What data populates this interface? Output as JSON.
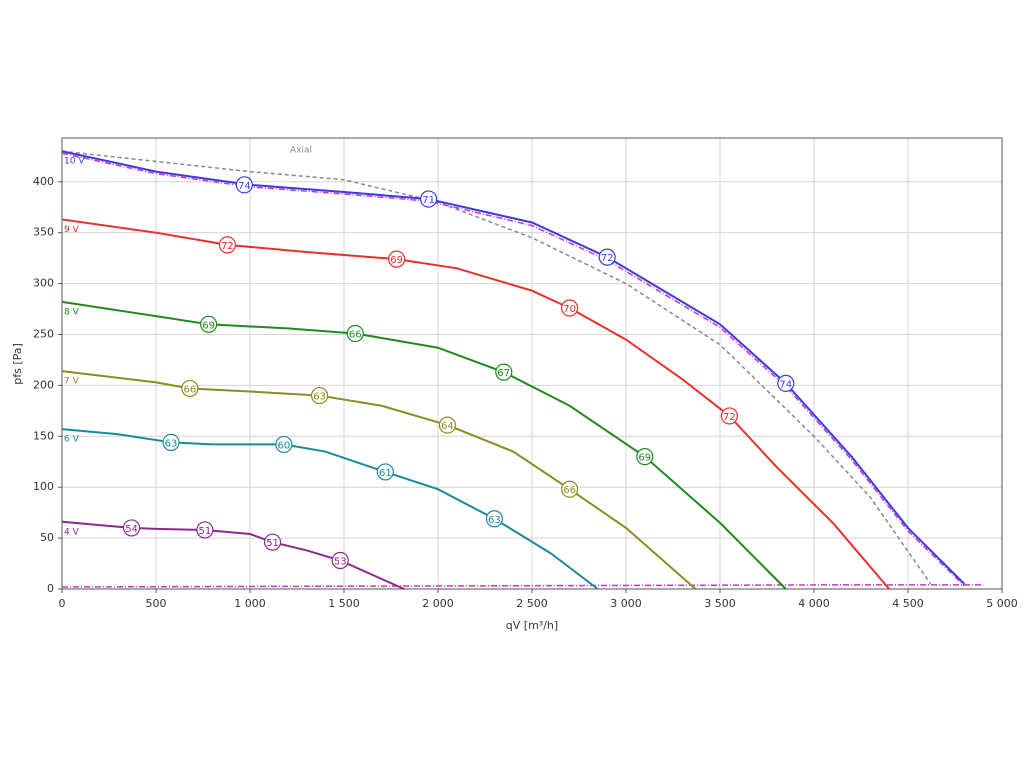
{
  "chart_data": {
    "type": "line",
    "x_label": "qV [m³/h]",
    "y_label": "pfs [Pa]",
    "xlim": [
      0,
      5000
    ],
    "ylim": [
      0,
      443
    ],
    "grid": true,
    "xticks": [
      0,
      500,
      {
        "value": 1000,
        "label": "1 000"
      },
      {
        "value": 1500,
        "label": "1 500"
      },
      {
        "value": 2000,
        "label": "2 000"
      },
      {
        "value": 2500,
        "label": "2 500"
      },
      {
        "value": 3000,
        "label": "3 000"
      },
      {
        "value": 3500,
        "label": "3 500"
      },
      {
        "value": 4000,
        "label": "4 000"
      },
      {
        "value": 4500,
        "label": "4 500"
      },
      {
        "value": 5000,
        "label": "5 000"
      }
    ],
    "yticks": [
      0,
      50,
      100,
      150,
      200,
      250,
      300,
      350,
      400
    ],
    "series": [
      {
        "name": "Axial",
        "color": "#888888",
        "dash": "4,3",
        "x": [
          0,
          1000,
          1500,
          2000,
          2500,
          3000,
          3500,
          4000,
          4300,
          4620
        ],
        "values": [
          430,
          410,
          402,
          380,
          345,
          300,
          240,
          150,
          90,
          5
        ]
      },
      {
        "color": "#cc33cc",
        "dash": "6,2,1,2",
        "x": [
          0,
          500,
          1000,
          1500,
          1950,
          2500,
          2900,
          3500,
          3850,
          4200,
          4500,
          4800
        ],
        "values": [
          428,
          408,
          395,
          388,
          381,
          357,
          323,
          257,
          199,
          127,
          57,
          3
        ]
      },
      {
        "color": "#cc33cc",
        "dash": "6,2,1,2",
        "x": [
          0,
          2000,
          4000,
          4900
        ],
        "values": [
          2,
          3,
          4,
          4
        ]
      },
      {
        "name": "10 V",
        "color": "#3b3bdc",
        "x": [
          0,
          500,
          1000,
          1500,
          1950,
          2500,
          2900,
          3500,
          3850,
          4200,
          4500,
          4800
        ],
        "values": [
          430,
          410,
          397,
          390,
          383,
          360,
          326,
          260,
          202,
          130,
          60,
          5
        ],
        "markers": [
          {
            "x": 970,
            "y": 397,
            "value": 74
          },
          {
            "x": 1950,
            "y": 383,
            "value": 71
          },
          {
            "x": 2900,
            "y": 326,
            "value": 72
          },
          {
            "x": 3850,
            "y": 202,
            "value": 74
          }
        ]
      },
      {
        "name": "9 V",
        "color": "#e8302a",
        "x": [
          0,
          500,
          880,
          1300,
          1780,
          2100,
          2500,
          2700,
          3000,
          3300,
          3550,
          3800,
          4100,
          4400
        ],
        "values": [
          363,
          350,
          338,
          331,
          324,
          315,
          293,
          276,
          245,
          206,
          170,
          120,
          65,
          0
        ],
        "markers": [
          {
            "x": 880,
            "y": 338,
            "value": 72
          },
          {
            "x": 1780,
            "y": 324,
            "value": 69
          },
          {
            "x": 2700,
            "y": 276,
            "value": 70
          },
          {
            "x": 3550,
            "y": 170,
            "value": 72
          }
        ]
      },
      {
        "name": "8 V",
        "color": "#1f8a1f",
        "x": [
          0,
          500,
          780,
          1200,
          1560,
          2000,
          2350,
          2700,
          3100,
          3500,
          3850
        ],
        "values": [
          282,
          268,
          260,
          256,
          251,
          237,
          213,
          180,
          130,
          65,
          0
        ],
        "markers": [
          {
            "x": 780,
            "y": 260,
            "value": 69
          },
          {
            "x": 1560,
            "y": 251,
            "value": 66
          },
          {
            "x": 2350,
            "y": 213,
            "value": 67
          },
          {
            "x": 3100,
            "y": 130,
            "value": 69
          }
        ]
      },
      {
        "name": "7 V",
        "color": "#8c8c20",
        "x": [
          0,
          500,
          680,
          1000,
          1370,
          1700,
          2050,
          2400,
          2700,
          3000,
          3370
        ],
        "values": [
          214,
          203,
          197,
          194,
          190,
          180,
          161,
          135,
          98,
          60,
          0
        ],
        "markers": [
          {
            "x": 680,
            "y": 197,
            "value": 66
          },
          {
            "x": 1370,
            "y": 190,
            "value": 63
          },
          {
            "x": 2050,
            "y": 161,
            "value": 64
          },
          {
            "x": 2700,
            "y": 98,
            "value": 66
          }
        ]
      },
      {
        "name": "6 V",
        "color": "#1a8a9a",
        "x": [
          0,
          300,
          580,
          800,
          1180,
          1400,
          1720,
          2000,
          2300,
          2600,
          2850
        ],
        "values": [
          157,
          152,
          144,
          142,
          142,
          135,
          115,
          98,
          69,
          35,
          0
        ],
        "markers": [
          {
            "x": 580,
            "y": 144,
            "value": 63
          },
          {
            "x": 1180,
            "y": 142,
            "value": 60
          },
          {
            "x": 1720,
            "y": 115,
            "value": 61
          },
          {
            "x": 2300,
            "y": 69,
            "value": 63
          }
        ]
      },
      {
        "name": "4 V",
        "color": "#8a2a8a",
        "x": [
          0,
          370,
          500,
          760,
          1000,
          1120,
          1300,
          1480,
          1650,
          1820
        ],
        "values": [
          66,
          60,
          59,
          58,
          54,
          46,
          38,
          28,
          14,
          0
        ],
        "markers": [
          {
            "x": 370,
            "y": 60,
            "value": 54
          },
          {
            "x": 760,
            "y": 58,
            "value": 51
          },
          {
            "x": 1120,
            "y": 46,
            "value": 51
          },
          {
            "x": 1480,
            "y": 28,
            "value": 53
          }
        ]
      }
    ]
  }
}
